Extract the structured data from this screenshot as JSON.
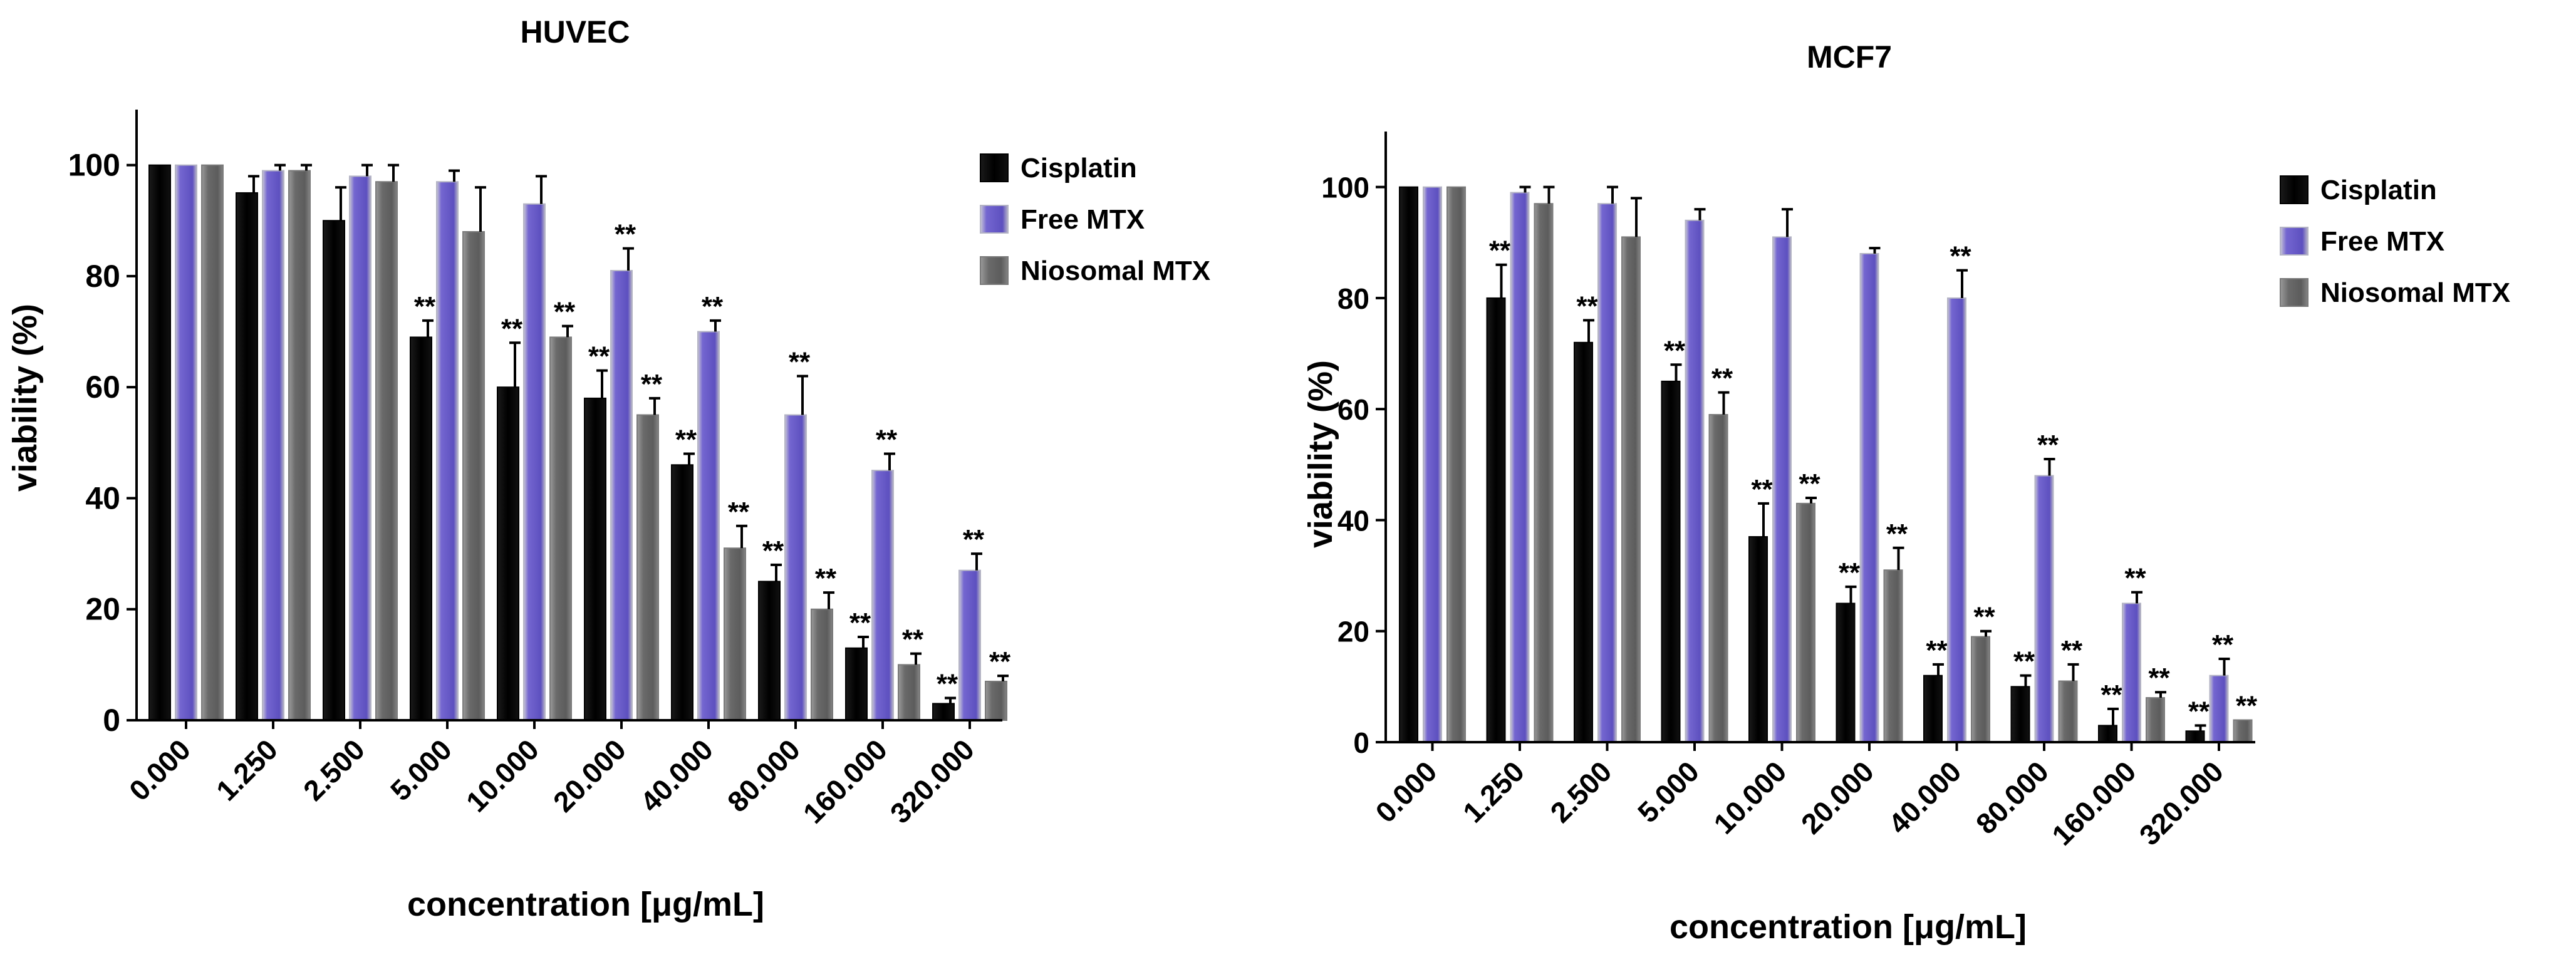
{
  "chart_data": [
    {
      "type": "bar",
      "title": "HUVEC",
      "xlabel": "concentration [μg/mL]",
      "ylabel": "viability  (%)",
      "ylim": [
        0,
        110
      ],
      "yticks": [
        0,
        20,
        40,
        60,
        80,
        100
      ],
      "grid": false,
      "legend_position": "top-right",
      "categories": [
        "0.000",
        "1.250",
        "2.500",
        "5.000",
        "10.000",
        "20.000",
        "40.000",
        "80.000",
        "160.000",
        "320.000"
      ],
      "series": [
        {
          "name": "Cisplatin",
          "color": "#000000",
          "values": [
            100,
            95,
            90,
            69,
            60,
            58,
            46,
            25,
            13,
            3
          ],
          "errors": [
            0,
            3,
            6,
            3,
            8,
            5,
            2,
            3,
            2,
            1
          ],
          "sig": [
            "",
            "",
            "",
            "**",
            "**",
            "**",
            "**",
            "**",
            "**",
            "**"
          ]
        },
        {
          "name": "Free MTX",
          "color": "#6b5fc7",
          "values": [
            100,
            99,
            98,
            97,
            93,
            81,
            70,
            55,
            45,
            27
          ],
          "errors": [
            0,
            1,
            2,
            2,
            5,
            4,
            2,
            7,
            3,
            3
          ],
          "sig": [
            "",
            "",
            "",
            "",
            "",
            "**",
            "**",
            "**",
            "**",
            "**"
          ]
        },
        {
          "name": "Niosomal MTX",
          "color": "#6e6e6e",
          "values": [
            100,
            99,
            97,
            88,
            69,
            55,
            31,
            20,
            10,
            7
          ],
          "errors": [
            0,
            1,
            3,
            8,
            2,
            3,
            4,
            3,
            2,
            1
          ],
          "sig": [
            "",
            "",
            "",
            "",
            "**",
            "**",
            "**",
            "**",
            "**",
            "**"
          ]
        }
      ],
      "significance_marker": "**"
    },
    {
      "type": "bar",
      "title": "MCF7",
      "xlabel": "concentration [μg/mL]",
      "ylabel": "viability  (%)",
      "ylim": [
        0,
        110
      ],
      "yticks": [
        0,
        20,
        40,
        60,
        80,
        100
      ],
      "grid": false,
      "legend_position": "top-right",
      "categories": [
        "0.000",
        "1.250",
        "2.500",
        "5.000",
        "10.000",
        "20.000",
        "40.000",
        "80.000",
        "160.000",
        "320.000"
      ],
      "series": [
        {
          "name": "Cisplatin",
          "color": "#000000",
          "values": [
            100,
            80,
            72,
            65,
            37,
            25,
            12,
            10,
            3,
            2
          ],
          "errors": [
            0,
            6,
            4,
            3,
            6,
            3,
            2,
            2,
            3,
            1
          ],
          "sig": [
            "",
            "**",
            "**",
            "**",
            "**",
            "**",
            "**",
            "**",
            "**",
            "**"
          ]
        },
        {
          "name": "Free MTX",
          "color": "#6b5fc7",
          "values": [
            100,
            99,
            97,
            94,
            91,
            88,
            80,
            48,
            25,
            12
          ],
          "errors": [
            0,
            1,
            3,
            2,
            5,
            1,
            5,
            3,
            2,
            3
          ],
          "sig": [
            "",
            "",
            "",
            "",
            "",
            "",
            "**",
            "**",
            "**",
            "**"
          ]
        },
        {
          "name": "Niosomal MTX",
          "color": "#6e6e6e",
          "values": [
            100,
            97,
            91,
            59,
            43,
            31,
            19,
            11,
            8,
            4
          ],
          "errors": [
            0,
            3,
            7,
            4,
            1,
            4,
            1,
            3,
            1,
            0
          ],
          "sig": [
            "",
            "",
            "",
            "**",
            "**",
            "**",
            "**",
            "**",
            "**",
            "**"
          ]
        }
      ],
      "significance_marker": "**"
    }
  ]
}
